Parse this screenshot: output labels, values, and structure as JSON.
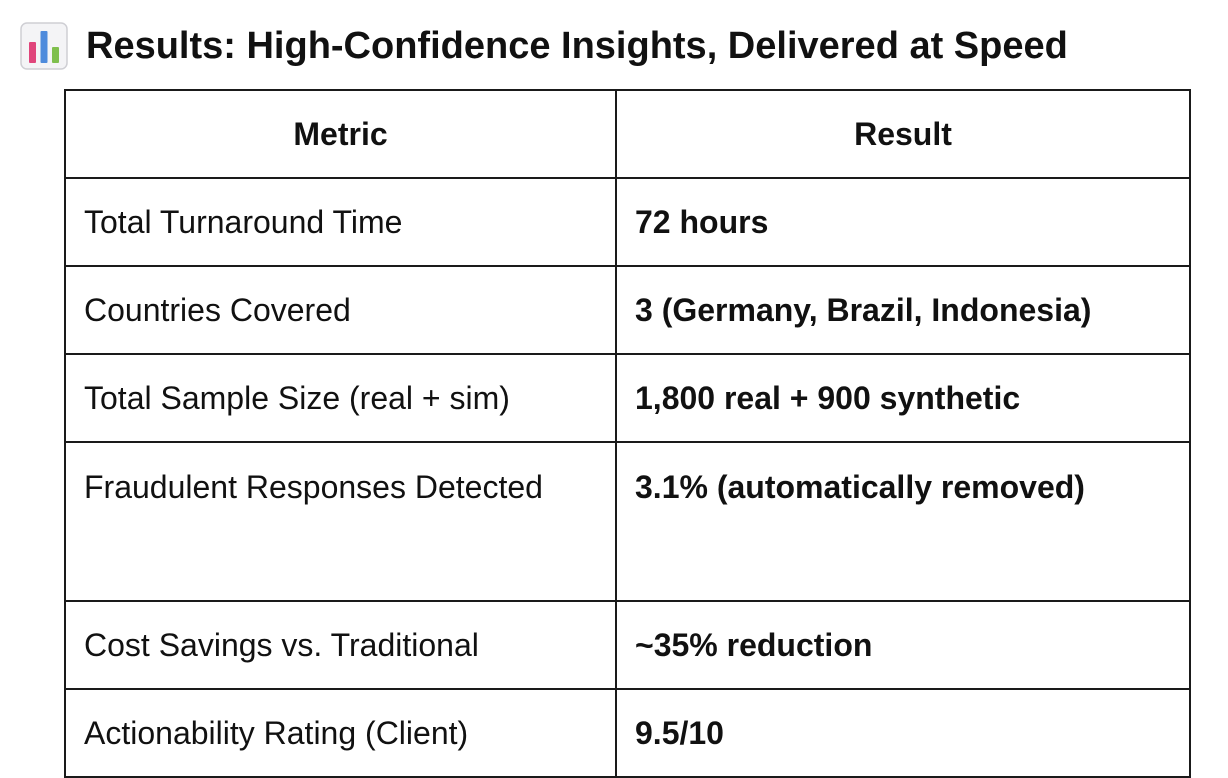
{
  "heading": {
    "icon": "bar-chart-icon",
    "title": "Results: High-Confidence Insights, Delivered at Speed"
  },
  "table": {
    "headers": [
      "Metric",
      "Result"
    ],
    "rows": [
      {
        "metric": "Total Turnaround Time",
        "result": "72 hours"
      },
      {
        "metric": "Countries Covered",
        "result": "3 (Germany, Brazil, Indonesia)"
      },
      {
        "metric": "Total Sample Size (real + sim)",
        "result": "1,800 real + 900 synthetic"
      },
      {
        "metric": "Fraudulent Responses Detected",
        "result": "3.1% (automatically removed)"
      },
      {
        "metric": "Cost Savings vs. Traditional",
        "result": "~35% reduction"
      },
      {
        "metric": "Actionability Rating (Client)",
        "result": "9.5/10"
      }
    ]
  },
  "colors": {
    "icon_bars": [
      "#e0457b",
      "#4e8bdc",
      "#7fbf4d"
    ],
    "border": "#1a1a1a"
  }
}
